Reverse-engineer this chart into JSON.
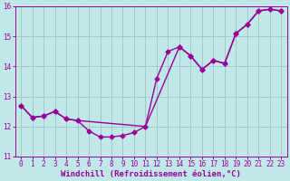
{
  "bg_color": "#c0e8e8",
  "line_color": "#990099",
  "grid_color": "#99bbbb",
  "xlim": [
    -0.5,
    23.5
  ],
  "ylim": [
    11,
    16
  ],
  "xticks": [
    0,
    1,
    2,
    3,
    4,
    5,
    6,
    7,
    8,
    9,
    10,
    11,
    12,
    13,
    14,
    15,
    16,
    17,
    18,
    19,
    20,
    21,
    22,
    23
  ],
  "yticks": [
    11,
    12,
    13,
    14,
    15,
    16
  ],
  "xlabel": "Windchill (Refroidissement éolien,°C)",
  "line1_x": [
    0,
    1,
    2,
    3,
    4,
    5,
    6,
    7,
    8,
    9,
    10,
    11,
    12,
    13,
    14,
    15,
    16,
    17,
    18,
    19,
    20,
    21,
    22,
    23
  ],
  "line1_y": [
    12.7,
    12.3,
    12.35,
    12.5,
    12.25,
    12.2,
    11.85,
    11.65,
    11.65,
    11.7,
    11.8,
    12.0,
    13.6,
    14.5,
    14.65,
    14.35,
    13.9,
    14.2,
    14.1,
    15.1,
    15.4,
    15.85,
    15.9,
    15.85
  ],
  "line2_x": [
    0,
    1,
    2,
    3,
    4,
    5,
    11,
    14,
    15,
    16,
    17,
    18,
    19,
    20,
    21,
    22,
    23
  ],
  "line2_y": [
    12.7,
    12.3,
    12.35,
    12.5,
    12.25,
    12.2,
    12.0,
    14.65,
    14.35,
    13.9,
    14.2,
    14.1,
    15.1,
    15.4,
    15.85,
    15.9,
    15.85
  ],
  "marker": "D",
  "marker_size": 2.5,
  "line_width": 1.0,
  "tick_fontsize": 5.5,
  "label_fontsize": 6.5
}
